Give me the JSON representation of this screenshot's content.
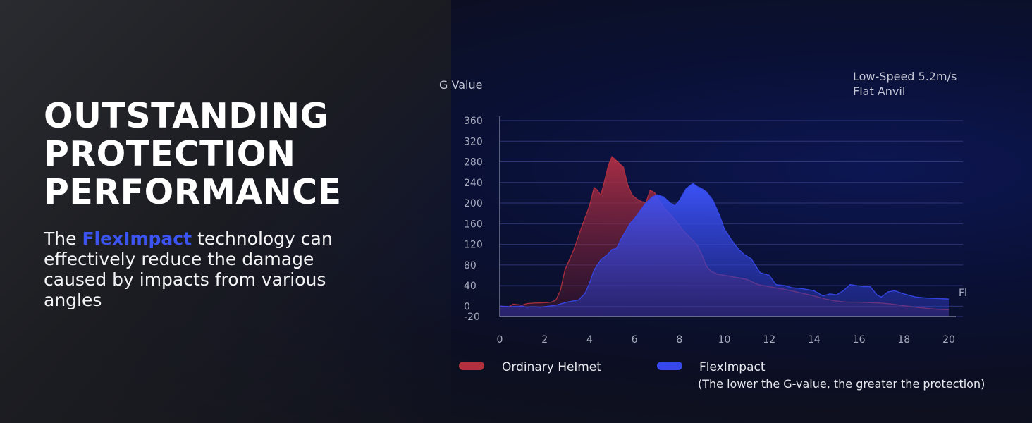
{
  "headline": {
    "lines": [
      "OUTSTANDING",
      "PROTECTION",
      "PERFORMANCE"
    ]
  },
  "description": {
    "prefix": "The ",
    "brand": "FlexImpact",
    "suffix": " technology can effectively reduce the damage caused by impacts from various angles"
  },
  "colors": {
    "ordinary": "#b2303d",
    "fleximpact": "#3648ec",
    "brand_text": "#3b54f0"
  },
  "chart_data": {
    "type": "area",
    "ylabel": "G Value",
    "test_condition": [
      "Low-Speed 5.2m/s",
      "Flat Anvil"
    ],
    "xlim": [
      0,
      20
    ],
    "ylim": [
      -20,
      360
    ],
    "xticks": [
      0,
      2,
      4,
      6,
      8,
      10,
      12,
      14,
      16,
      18,
      20
    ],
    "yticks": [
      360,
      320,
      280,
      240,
      200,
      160,
      120,
      80,
      40,
      0,
      -20
    ],
    "grid": "horizontal",
    "edge_label": "Fl",
    "legend_position": "bottom",
    "legend_note": "(The lower the G-value, the greater the protection)",
    "series": [
      {
        "name": "Ordinary Helmet",
        "color": "#b2303d",
        "points": [
          [
            0,
            0
          ],
          [
            0.4,
            -1
          ],
          [
            0.6,
            4
          ],
          [
            0.8,
            3
          ],
          [
            1,
            2
          ],
          [
            1.2,
            5
          ],
          [
            1.5,
            6
          ],
          [
            2,
            7
          ],
          [
            2.3,
            8
          ],
          [
            2.5,
            12
          ],
          [
            2.7,
            30
          ],
          [
            2.9,
            70
          ],
          [
            3.3,
            110
          ],
          [
            3.7,
            160
          ],
          [
            4,
            195
          ],
          [
            4.2,
            230
          ],
          [
            4.35,
            225
          ],
          [
            4.5,
            215
          ],
          [
            4.65,
            240
          ],
          [
            4.85,
            275
          ],
          [
            5,
            290
          ],
          [
            5.2,
            282
          ],
          [
            5.5,
            270
          ],
          [
            5.7,
            235
          ],
          [
            5.9,
            215
          ],
          [
            6.2,
            205
          ],
          [
            6.5,
            200
          ],
          [
            6.7,
            225
          ],
          [
            6.9,
            220
          ],
          [
            7.1,
            205
          ],
          [
            7.3,
            192
          ],
          [
            7.6,
            178
          ],
          [
            7.9,
            162
          ],
          [
            8.2,
            145
          ],
          [
            8.5,
            132
          ],
          [
            8.8,
            118
          ],
          [
            9,
            100
          ],
          [
            9.2,
            78
          ],
          [
            9.4,
            68
          ],
          [
            9.7,
            62
          ],
          [
            10,
            60
          ],
          [
            10.5,
            56
          ],
          [
            11,
            52
          ],
          [
            11.5,
            42
          ],
          [
            12,
            38
          ],
          [
            12.5,
            34
          ],
          [
            13,
            30
          ],
          [
            13.5,
            25
          ],
          [
            14,
            20
          ],
          [
            14.5,
            14
          ],
          [
            15,
            10
          ],
          [
            15.5,
            8
          ],
          [
            16,
            8
          ],
          [
            16.5,
            7
          ],
          [
            17,
            6
          ],
          [
            17.5,
            4
          ],
          [
            18,
            1
          ],
          [
            18.5,
            -2
          ],
          [
            19,
            -4
          ],
          [
            19.5,
            -6
          ],
          [
            20,
            -7
          ]
        ]
      },
      {
        "name": "FlexImpact",
        "color": "#3648ec",
        "points": [
          [
            0,
            0
          ],
          [
            0.5,
            -1
          ],
          [
            1,
            0
          ],
          [
            1.2,
            -2
          ],
          [
            1.5,
            -1
          ],
          [
            1.8,
            -2
          ],
          [
            2,
            -1
          ],
          [
            2.5,
            2
          ],
          [
            3,
            8
          ],
          [
            3.5,
            12
          ],
          [
            3.8,
            25
          ],
          [
            4,
            45
          ],
          [
            4.2,
            70
          ],
          [
            4.5,
            90
          ],
          [
            4.8,
            100
          ],
          [
            5,
            110
          ],
          [
            5.2,
            112
          ],
          [
            5.4,
            130
          ],
          [
            5.6,
            145
          ],
          [
            5.8,
            160
          ],
          [
            6,
            170
          ],
          [
            6.2,
            182
          ],
          [
            6.5,
            200
          ],
          [
            6.8,
            212
          ],
          [
            7,
            216
          ],
          [
            7.3,
            212
          ],
          [
            7.6,
            200
          ],
          [
            7.8,
            195
          ],
          [
            8,
            205
          ],
          [
            8.3,
            228
          ],
          [
            8.6,
            238
          ],
          [
            8.8,
            232
          ],
          [
            9,
            228
          ],
          [
            9.2,
            222
          ],
          [
            9.5,
            205
          ],
          [
            9.8,
            175
          ],
          [
            10,
            150
          ],
          [
            10.3,
            130
          ],
          [
            10.6,
            112
          ],
          [
            10.9,
            100
          ],
          [
            11.2,
            92
          ],
          [
            11.4,
            78
          ],
          [
            11.6,
            65
          ],
          [
            12,
            60
          ],
          [
            12.3,
            42
          ],
          [
            12.7,
            40
          ],
          [
            13,
            36
          ],
          [
            13.5,
            34
          ],
          [
            14,
            30
          ],
          [
            14.4,
            20
          ],
          [
            14.7,
            24
          ],
          [
            15,
            22
          ],
          [
            15.3,
            30
          ],
          [
            15.6,
            42
          ],
          [
            15.9,
            40
          ],
          [
            16.2,
            38
          ],
          [
            16.5,
            38
          ],
          [
            16.8,
            22
          ],
          [
            17,
            18
          ],
          [
            17.3,
            28
          ],
          [
            17.6,
            30
          ],
          [
            18,
            24
          ],
          [
            18.5,
            18
          ],
          [
            19,
            16
          ],
          [
            19.5,
            15
          ],
          [
            20,
            14
          ]
        ]
      }
    ]
  }
}
